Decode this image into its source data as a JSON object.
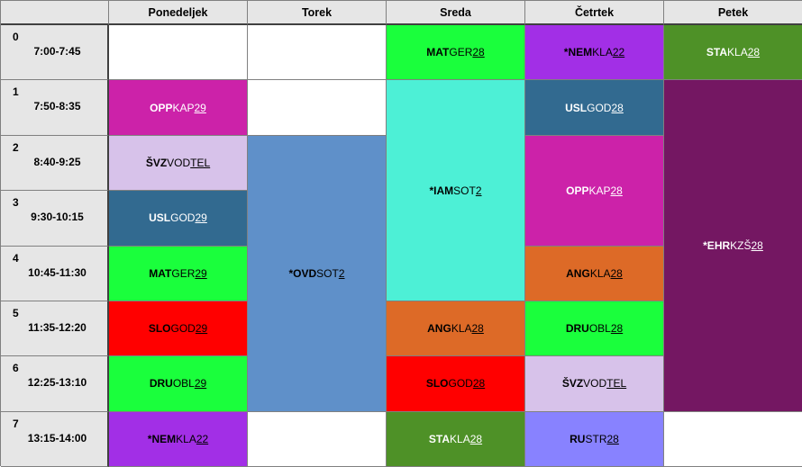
{
  "days": [
    "Ponedeljek",
    "Torek",
    "Sreda",
    "Četrtek",
    "Petek"
  ],
  "periods": [
    {
      "num": "0",
      "time": "7:00-7:45"
    },
    {
      "num": "1",
      "time": "7:50-8:35"
    },
    {
      "num": "2",
      "time": "8:40-9:25"
    },
    {
      "num": "3",
      "time": "9:30-10:15"
    },
    {
      "num": "4",
      "time": "10:45-11:30"
    },
    {
      "num": "5",
      "time": "11:35-12:20"
    },
    {
      "num": "6",
      "time": "12:25-13:10"
    },
    {
      "num": "7",
      "time": "13:15-14:00"
    }
  ],
  "colors": {
    "header_bg": "#e6e6e6",
    "grid_line": "#808080",
    "MAT": "#1aff3c",
    "NEM": "#a22fe6",
    "STA": "#4e9127",
    "OPP": "#cc22a9",
    "USL": "#326a90",
    "SVZ": "#d7c2ea",
    "IAM": "#4df0d6",
    "OVD": "#5f90c9",
    "EHR": "#741762",
    "SLO": "#ff0000",
    "ANG": "#dd6a27",
    "DRU": "#1aff3c",
    "RU": "#8882ff"
  },
  "lessons": [
    {
      "day": 0,
      "period": 1,
      "span": 1,
      "subj": "OPP",
      "teacher": "KAP",
      "room": "29",
      "color": "OPP",
      "light": true
    },
    {
      "day": 0,
      "period": 2,
      "span": 1,
      "subj": "ŠVZ",
      "teacher": "VOD",
      "room": "TEL",
      "color": "SVZ",
      "light": false
    },
    {
      "day": 0,
      "period": 3,
      "span": 1,
      "subj": "USL",
      "teacher": "GOD",
      "room": "29",
      "color": "USL",
      "light": true
    },
    {
      "day": 0,
      "period": 4,
      "span": 1,
      "subj": "MAT",
      "teacher": "GER",
      "room": "29",
      "color": "MAT",
      "light": false
    },
    {
      "day": 0,
      "period": 5,
      "span": 1,
      "subj": "SLO",
      "teacher": "GOD",
      "room": "29",
      "color": "SLO",
      "light": false
    },
    {
      "day": 0,
      "period": 6,
      "span": 1,
      "subj": "DRU",
      "teacher": "OBL",
      "room": "29",
      "color": "DRU",
      "light": false
    },
    {
      "day": 0,
      "period": 7,
      "span": 1,
      "subj": "*NEM",
      "teacher": "KLA",
      "room": "22",
      "color": "NEM",
      "light": false
    },
    {
      "day": 1,
      "period": 2,
      "span": 5,
      "subj": "*OVD",
      "teacher": "SOT",
      "room": "2",
      "color": "OVD",
      "light": false
    },
    {
      "day": 2,
      "period": 0,
      "span": 1,
      "subj": "MAT",
      "teacher": "GER",
      "room": "28",
      "color": "MAT",
      "light": false
    },
    {
      "day": 2,
      "period": 1,
      "span": 4,
      "subj": "*IAM",
      "teacher": "SOT",
      "room": "2",
      "color": "IAM",
      "light": false
    },
    {
      "day": 2,
      "period": 5,
      "span": 1,
      "subj": "ANG",
      "teacher": "KLA",
      "room": "28",
      "color": "ANG",
      "light": false
    },
    {
      "day": 2,
      "period": 6,
      "span": 1,
      "subj": "SLO",
      "teacher": "GOD",
      "room": "28",
      "color": "SLO",
      "light": false
    },
    {
      "day": 2,
      "period": 7,
      "span": 1,
      "subj": "STA",
      "teacher": "KLA",
      "room": "28",
      "color": "STA",
      "light": true
    },
    {
      "day": 3,
      "period": 0,
      "span": 1,
      "subj": "*NEM",
      "teacher": "KLA",
      "room": "22",
      "color": "NEM",
      "light": false
    },
    {
      "day": 3,
      "period": 1,
      "span": 1,
      "subj": "USL",
      "teacher": "GOD",
      "room": "28",
      "color": "USL",
      "light": true
    },
    {
      "day": 3,
      "period": 2,
      "span": 2,
      "subj": "OPP",
      "teacher": "KAP",
      "room": "28",
      "color": "OPP",
      "light": true
    },
    {
      "day": 3,
      "period": 4,
      "span": 1,
      "subj": "ANG",
      "teacher": "KLA",
      "room": "28",
      "color": "ANG",
      "light": false
    },
    {
      "day": 3,
      "period": 5,
      "span": 1,
      "subj": "DRU",
      "teacher": "OBL",
      "room": "28",
      "color": "DRU",
      "light": false
    },
    {
      "day": 3,
      "period": 6,
      "span": 1,
      "subj": "ŠVZ",
      "teacher": "VOD",
      "room": "TEL",
      "color": "SVZ",
      "light": false
    },
    {
      "day": 3,
      "period": 7,
      "span": 1,
      "subj": "RU",
      "teacher": "STR",
      "room": "28",
      "color": "RU",
      "light": false
    },
    {
      "day": 4,
      "period": 0,
      "span": 1,
      "subj": "STA",
      "teacher": "KLA",
      "room": "28",
      "color": "STA",
      "light": true
    },
    {
      "day": 4,
      "period": 1,
      "span": 6,
      "subj": "*EHR",
      "teacher": "KZŠ",
      "room": "28",
      "color": "EHR",
      "light": true
    }
  ]
}
